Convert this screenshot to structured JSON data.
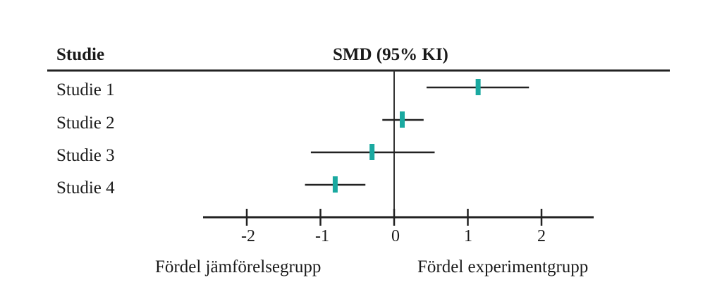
{
  "header": {
    "col_study": "Studie",
    "col_effect": "SMD (95% KI)"
  },
  "axis": {
    "ticks": [
      "-2",
      "-1",
      "0",
      "1",
      "2"
    ],
    "left_label": "Fördel jämförelsegrupp",
    "right_label": "Fördel experimentgrupp"
  },
  "studies": [
    {
      "label": "Studie 1"
    },
    {
      "label": "Studie 2"
    },
    {
      "label": "Studie 3"
    },
    {
      "label": "Studie 4"
    }
  ],
  "colors": {
    "point": "#1aa9a0",
    "line": "#222222"
  },
  "chart_data": {
    "type": "forest",
    "title": "SMD (95% KI)",
    "xlabel_left": "Fördel jämförelsegrupp",
    "xlabel_right": "Fördel experimentgrupp",
    "categories": [
      "Studie 1",
      "Studie 2",
      "Studie 3",
      "Studie 4"
    ],
    "estimates": [
      1.14,
      0.11,
      -0.3,
      -0.8
    ],
    "ci_lower": [
      0.44,
      -0.16,
      -1.13,
      -1.21
    ],
    "ci_upper": [
      1.83,
      0.4,
      0.55,
      -0.39
    ],
    "xticks": [
      -2,
      -1,
      0,
      1,
      2
    ],
    "xlim": [
      -2.6,
      2.7
    ],
    "reference_line": 0
  }
}
